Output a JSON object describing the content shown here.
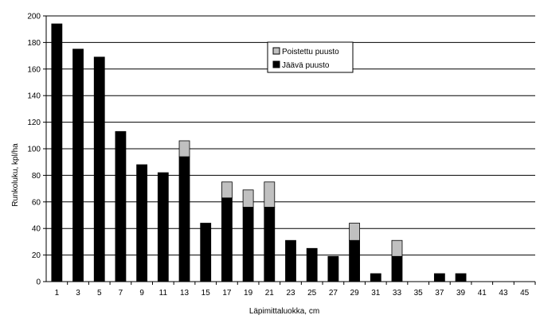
{
  "chart_data": {
    "type": "bar",
    "stacked": true,
    "xlabel": "Läpimittaluokka, cm",
    "ylabel": "Runkoluku, kpl/ha",
    "ylim": [
      0,
      200
    ],
    "y_ticks": [
      0,
      20,
      40,
      60,
      80,
      100,
      120,
      140,
      160,
      180,
      200
    ],
    "grid": "horizontal",
    "legend_position": "top-center",
    "categories": [
      "1",
      "3",
      "5",
      "7",
      "9",
      "11",
      "13",
      "15",
      "17",
      "19",
      "21",
      "23",
      "25",
      "27",
      "29",
      "31",
      "33",
      "35",
      "37",
      "39",
      "41",
      "43",
      "45"
    ],
    "series": [
      {
        "name": "Jäävä puusto",
        "color": "#000000",
        "values": [
          194,
          175,
          169,
          113,
          88,
          82,
          94,
          44,
          63,
          56,
          56,
          31,
          25,
          19,
          31,
          6,
          19,
          0,
          6,
          6,
          0,
          0,
          0
        ]
      },
      {
        "name": "Poistettu puusto",
        "color": "#c0c0c0",
        "values": [
          0,
          0,
          0,
          0,
          0,
          0,
          12,
          0,
          12,
          13,
          19,
          0,
          0,
          0,
          13,
          0,
          12,
          0,
          0,
          0,
          0,
          0,
          0
        ]
      }
    ],
    "legend": [
      {
        "label": "Poistettu puusto",
        "color": "#c0c0c0"
      },
      {
        "label": "Jäävä puusto",
        "color": "#000000"
      }
    ]
  }
}
